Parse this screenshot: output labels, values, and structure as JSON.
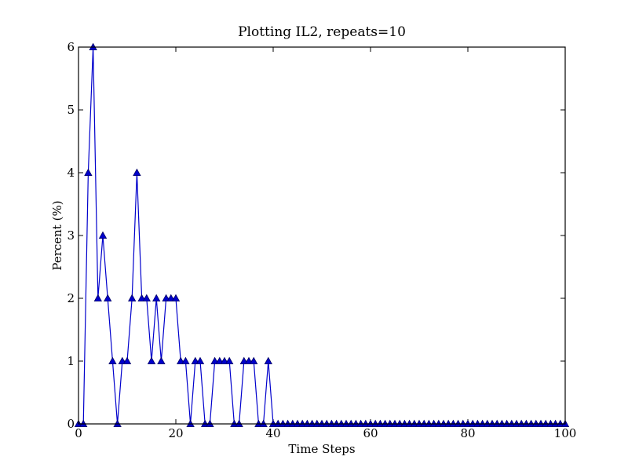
{
  "chart_data": {
    "type": "line",
    "title": "Plotting IL2, repeats=10",
    "xlabel": "Time Steps",
    "ylabel": "Percent (%)",
    "xlim": [
      0,
      100
    ],
    "ylim": [
      0,
      6
    ],
    "xticks": [
      0,
      20,
      40,
      60,
      80,
      100
    ],
    "yticks": [
      0,
      1,
      2,
      3,
      4,
      5,
      6
    ],
    "grid": false,
    "series": [
      {
        "color": "#0000cc",
        "marker": "triangle-up",
        "x": [
          0,
          1,
          2,
          3,
          4,
          5,
          6,
          7,
          8,
          9,
          10,
          11,
          12,
          13,
          14,
          15,
          16,
          17,
          18,
          19,
          20,
          21,
          22,
          23,
          24,
          25,
          26,
          27,
          28,
          29,
          30,
          31,
          32,
          33,
          34,
          35,
          36,
          37,
          38,
          39,
          40,
          41,
          42,
          43,
          44,
          45,
          46,
          47,
          48,
          49,
          50,
          51,
          52,
          53,
          54,
          55,
          56,
          57,
          58,
          59,
          60,
          61,
          62,
          63,
          64,
          65,
          66,
          67,
          68,
          69,
          70,
          71,
          72,
          73,
          74,
          75,
          76,
          77,
          78,
          79,
          80,
          81,
          82,
          83,
          84,
          85,
          86,
          87,
          88,
          89,
          90,
          91,
          92,
          93,
          94,
          95,
          96,
          97,
          98,
          99,
          100
        ],
        "y": [
          0,
          0,
          4,
          6,
          2,
          3,
          2,
          1,
          0,
          1,
          1,
          2,
          4,
          2,
          2,
          1,
          2,
          1,
          2,
          2,
          2,
          1,
          1,
          0,
          1,
          1,
          0,
          0,
          1,
          1,
          1,
          1,
          0,
          0,
          1,
          1,
          1,
          0,
          0,
          1,
          0,
          0,
          0,
          0,
          0,
          0,
          0,
          0,
          0,
          0,
          0,
          0,
          0,
          0,
          0,
          0,
          0,
          0,
          0,
          0,
          0,
          0,
          0,
          0,
          0,
          0,
          0,
          0,
          0,
          0,
          0,
          0,
          0,
          0,
          0,
          0,
          0,
          0,
          0,
          0,
          0,
          0,
          0,
          0,
          0,
          0,
          0,
          0,
          0,
          0,
          0,
          0,
          0,
          0,
          0,
          0,
          0,
          0,
          0,
          0,
          0
        ]
      }
    ]
  }
}
